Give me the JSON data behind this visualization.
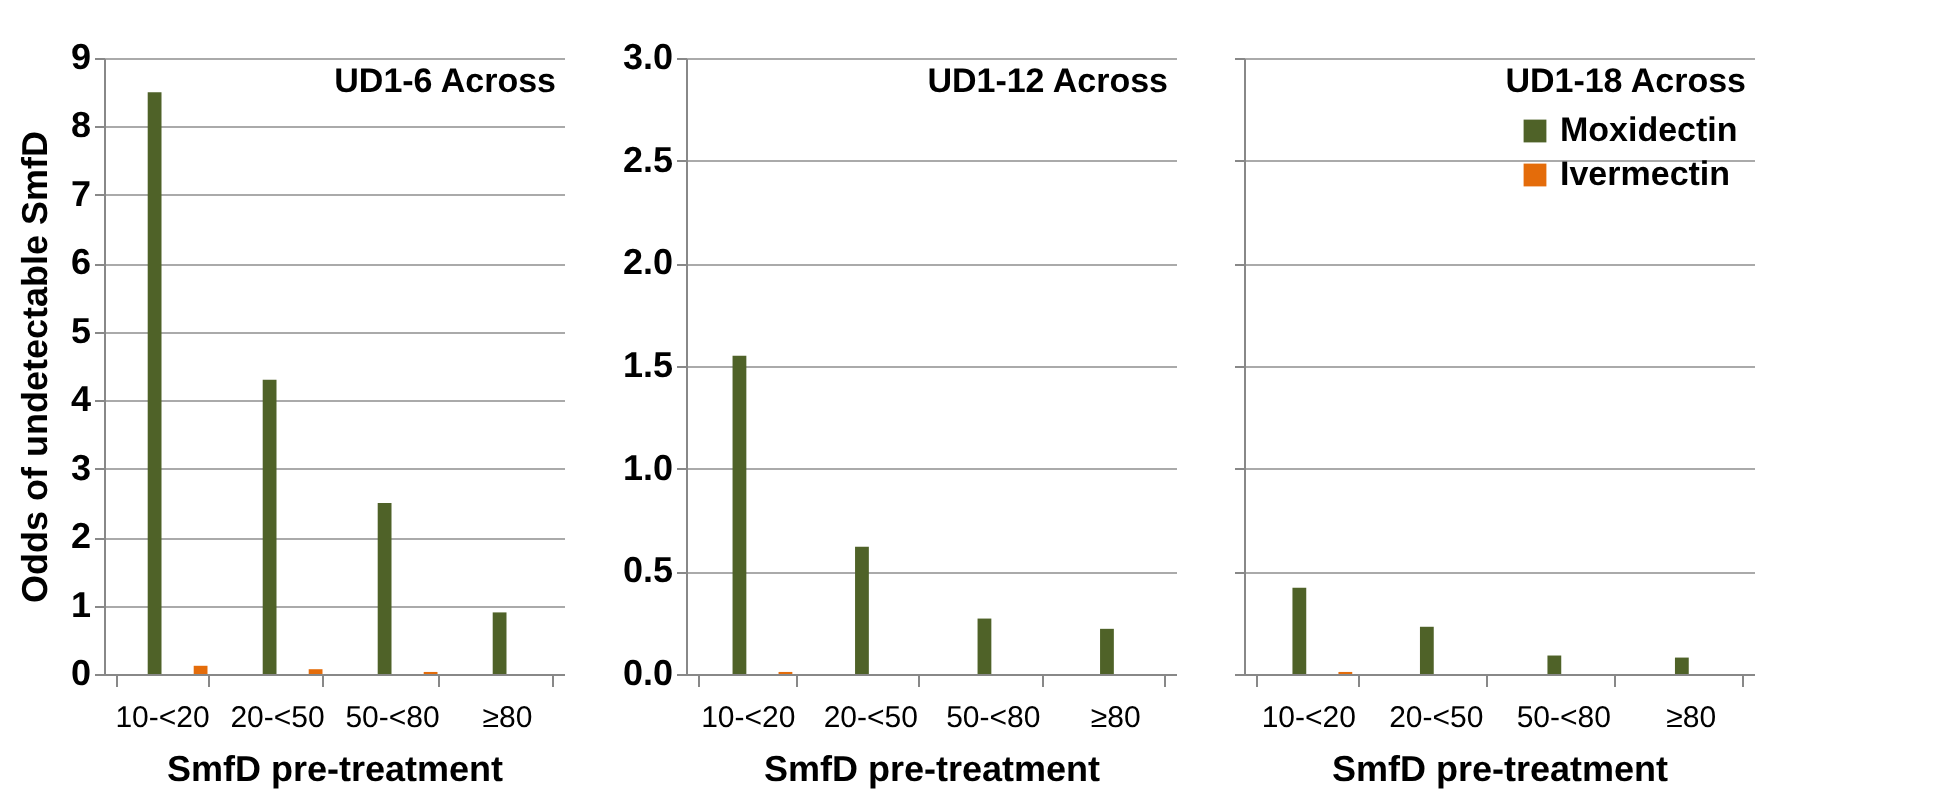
{
  "chart_data": [
    {
      "type": "bar",
      "title": "UD1-6 Across",
      "xlabel": "SmfD pre-treatment",
      "ylabel": "Odds of undetectable SmfD",
      "categories": [
        "10-<20",
        "20-<50",
        "50-<80",
        "≥80"
      ],
      "series": [
        {
          "color": "#4f6228",
          "values": [
            8.5,
            4.3,
            2.5,
            0.9
          ]
        },
        {
          "color": "#e46c0a",
          "values": [
            0.12,
            0.07,
            0.03,
            null
          ]
        }
      ],
      "ylim": [
        0,
        9
      ],
      "yticks": [
        0,
        1,
        2,
        3,
        4,
        5,
        6,
        7,
        8,
        9
      ],
      "grid": "y",
      "legend": false
    },
    {
      "type": "bar",
      "title": "UD1-12 Across",
      "xlabel": "SmfD pre-treatment",
      "categories": [
        "10-<20",
        "20-<50",
        "50-<80",
        "≥80"
      ],
      "series": [
        {
          "color": "#4f6228",
          "values": [
            1.55,
            0.62,
            0.27,
            0.22
          ]
        },
        {
          "color": "#e46c0a",
          "values": [
            0.01,
            null,
            null,
            null
          ]
        }
      ],
      "ylim": [
        0,
        3
      ],
      "yticks": [
        {
          "value": 0,
          "label": "0.0"
        },
        {
          "value": 0.5,
          "label": "0.5"
        },
        {
          "value": 1,
          "label": "1.0"
        },
        {
          "value": 1.5,
          "label": "1.5"
        },
        {
          "value": 2,
          "label": "2.0"
        },
        {
          "value": 2.5,
          "label": "2.5"
        },
        {
          "value": 3,
          "label": "3.0"
        }
      ],
      "grid": "y",
      "legend": false
    },
    {
      "type": "bar",
      "title": "UD1-18 Across",
      "xlabel": "SmfD pre-treatment",
      "categories": [
        "10-<20",
        "20-<50",
        "50-<80",
        "≥80"
      ],
      "series": [
        {
          "name": "Moxidectin",
          "color": "#4f6228",
          "values": [
            0.42,
            0.23,
            0.09,
            0.08
          ]
        },
        {
          "name": "Ivermectin",
          "color": "#e46c0a",
          "values": [
            0.01,
            null,
            null,
            null
          ]
        }
      ],
      "ylim": [
        0,
        3
      ],
      "yticks": [
        0,
        0.5,
        1,
        1.5,
        2,
        2.5,
        3
      ],
      "grid": "y",
      "legend": "top right",
      "tick_labels": "x"
    }
  ]
}
